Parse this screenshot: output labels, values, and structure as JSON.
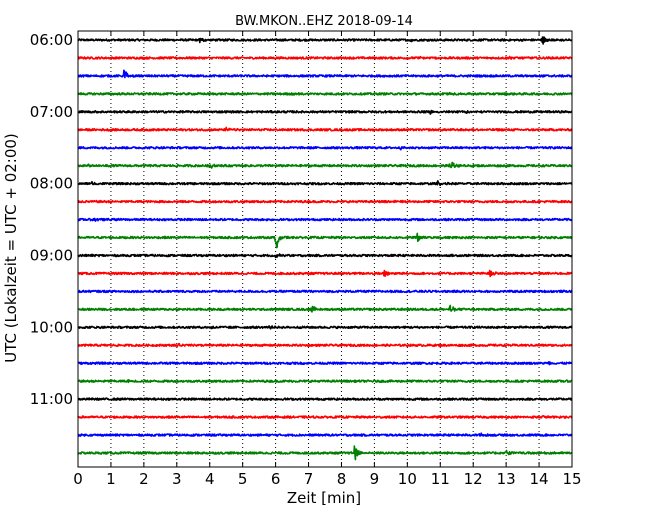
{
  "chart_data": {
    "type": "line",
    "title": "BW.MKON..EHZ 2018-09-14",
    "xlabel": "Zeit  [min]",
    "ylabel": "UTC (Lokalzeit = UTC + 02:00)",
    "xlim": [
      0,
      15
    ],
    "x_ticks": [
      "0",
      "1",
      "2",
      "3",
      "4",
      "5",
      "6",
      "7",
      "8",
      "9",
      "10",
      "11",
      "12",
      "13",
      "14",
      "15"
    ],
    "y_ticks": [
      "06:00",
      "07:00",
      "08:00",
      "09:00",
      "10:00",
      "11:00"
    ],
    "grid": "vertical dotted at each minute",
    "trace_minutes": 15,
    "color_cycle": [
      "#000000",
      "#ff0000",
      "#0000ff",
      "#008000"
    ],
    "traces": [
      {
        "start": "06:00",
        "color": "#000000",
        "events": [
          {
            "minute": 3.7,
            "amplitude": 0.3
          },
          {
            "minute": 14.1,
            "amplitude": 0.55
          },
          {
            "minute": 10.1,
            "amplitude": 0.2
          }
        ]
      },
      {
        "start": "06:15",
        "color": "#ff0000",
        "events": [
          {
            "minute": 10.3,
            "amplitude": 0.15
          },
          {
            "minute": 13.1,
            "amplitude": 0.12
          }
        ]
      },
      {
        "start": "06:30",
        "color": "#0000ff",
        "events": [
          {
            "minute": 1.4,
            "amplitude": 0.9
          },
          {
            "minute": 13.7,
            "amplitude": 0.15
          }
        ]
      },
      {
        "start": "06:45",
        "color": "#008000",
        "events": [
          {
            "minute": 6.5,
            "amplitude": 0.2
          },
          {
            "minute": 11.2,
            "amplitude": 0.15
          }
        ]
      },
      {
        "start": "07:00",
        "color": "#000000",
        "events": [
          {
            "minute": 10.7,
            "amplitude": 0.25
          },
          {
            "minute": 11.8,
            "amplitude": 0.2
          }
        ]
      },
      {
        "start": "07:15",
        "color": "#ff0000",
        "events": [
          {
            "minute": 4.5,
            "amplitude": 0.2
          },
          {
            "minute": 11.7,
            "amplitude": 0.15
          }
        ]
      },
      {
        "start": "07:30",
        "color": "#0000ff",
        "events": [
          {
            "minute": 9.8,
            "amplitude": 0.12
          }
        ]
      },
      {
        "start": "07:45",
        "color": "#008000",
        "events": [
          {
            "minute": 0.3,
            "amplitude": 0.2
          },
          {
            "minute": 4.0,
            "amplitude": 0.4
          },
          {
            "minute": 11.3,
            "amplitude": 0.9
          }
        ]
      },
      {
        "start": "08:00",
        "color": "#000000",
        "events": [
          {
            "minute": 0.4,
            "amplitude": 0.3
          },
          {
            "minute": 10.9,
            "amplitude": 0.35
          }
        ]
      },
      {
        "start": "08:15",
        "color": "#ff0000",
        "events": [
          {
            "minute": 9.5,
            "amplitude": 0.1
          }
        ]
      },
      {
        "start": "08:30",
        "color": "#0000ff",
        "events": [
          {
            "minute": 0.5,
            "amplitude": 0.3
          }
        ]
      },
      {
        "start": "08:45",
        "color": "#008000",
        "events": [
          {
            "minute": 6.0,
            "amplitude": 1.8
          },
          {
            "minute": 10.3,
            "amplitude": 0.6
          }
        ]
      },
      {
        "start": "09:00",
        "color": "#000000",
        "events": [
          {
            "minute": 6.0,
            "amplitude": 0.3
          }
        ]
      },
      {
        "start": "09:15",
        "color": "#ff0000",
        "events": [
          {
            "minute": 8.1,
            "amplitude": 0.25
          },
          {
            "minute": 9.3,
            "amplitude": 0.8
          },
          {
            "minute": 12.5,
            "amplitude": 0.55
          }
        ]
      },
      {
        "start": "09:30",
        "color": "#0000ff",
        "events": []
      },
      {
        "start": "09:45",
        "color": "#008000",
        "events": [
          {
            "minute": 7.1,
            "amplitude": 0.6
          },
          {
            "minute": 11.3,
            "amplitude": 0.6
          }
        ]
      },
      {
        "start": "10:00",
        "color": "#000000",
        "events": [
          {
            "minute": 4.0,
            "amplitude": 0.2
          },
          {
            "minute": 5.8,
            "amplitude": 0.15
          }
        ]
      },
      {
        "start": "10:15",
        "color": "#ff0000",
        "events": [
          {
            "minute": 3.0,
            "amplitude": 0.2
          }
        ]
      },
      {
        "start": "10:30",
        "color": "#0000ff",
        "events": [
          {
            "minute": 14.3,
            "amplitude": 0.15
          }
        ]
      },
      {
        "start": "10:45",
        "color": "#008000",
        "events": [
          {
            "minute": 1.5,
            "amplitude": 0.12
          }
        ]
      },
      {
        "start": "11:00",
        "color": "#000000",
        "events": []
      },
      {
        "start": "11:15",
        "color": "#ff0000",
        "events": [
          {
            "minute": 14.1,
            "amplitude": 0.2
          }
        ]
      },
      {
        "start": "11:30",
        "color": "#0000ff",
        "events": [
          {
            "minute": 12.2,
            "amplitude": 0.2
          }
        ]
      },
      {
        "start": "11:45",
        "color": "#008000",
        "events": [
          {
            "minute": 8.4,
            "amplitude": 1.0
          },
          {
            "minute": 13.0,
            "amplitude": 0.45
          }
        ]
      }
    ]
  }
}
